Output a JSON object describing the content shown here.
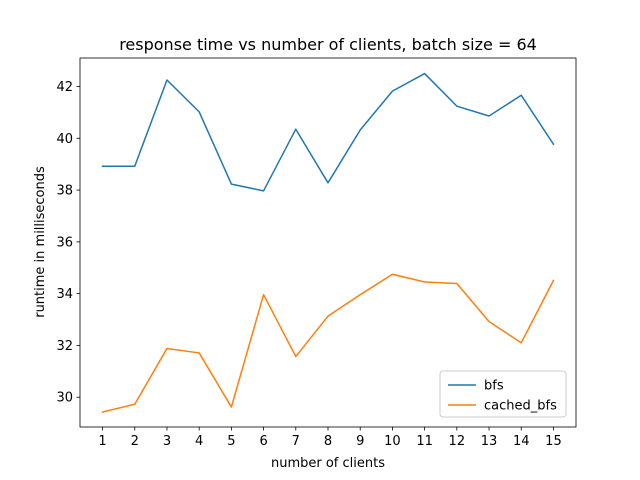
{
  "chart_data": {
    "type": "line",
    "title": "response time vs number of clients, batch size = 64",
    "xlabel": "number of clients",
    "ylabel": "runtime in milliseconds",
    "x": [
      1,
      2,
      3,
      4,
      5,
      6,
      7,
      8,
      9,
      10,
      11,
      12,
      13,
      14,
      15
    ],
    "xlim": [
      0.3,
      15.7
    ],
    "ylim": [
      28.85,
      43.1
    ],
    "xticks": [
      1,
      2,
      3,
      4,
      5,
      6,
      7,
      8,
      9,
      10,
      11,
      12,
      13,
      14,
      15
    ],
    "yticks": [
      30,
      32,
      34,
      36,
      38,
      40,
      42
    ],
    "grid": false,
    "legend_position": "lower-right",
    "series": [
      {
        "name": "bfs",
        "color": "#1f77b4",
        "values": [
          38.92,
          38.92,
          42.25,
          41.02,
          38.23,
          37.97,
          40.35,
          38.28,
          40.32,
          41.82,
          42.5,
          41.24,
          40.86,
          41.66,
          39.77
        ]
      },
      {
        "name": "cached_bfs",
        "color": "#ff7f0e",
        "values": [
          29.43,
          29.73,
          31.88,
          31.71,
          29.62,
          33.96,
          31.57,
          33.13,
          33.96,
          34.75,
          34.45,
          34.39,
          32.92,
          32.1,
          34.51
        ]
      }
    ]
  }
}
